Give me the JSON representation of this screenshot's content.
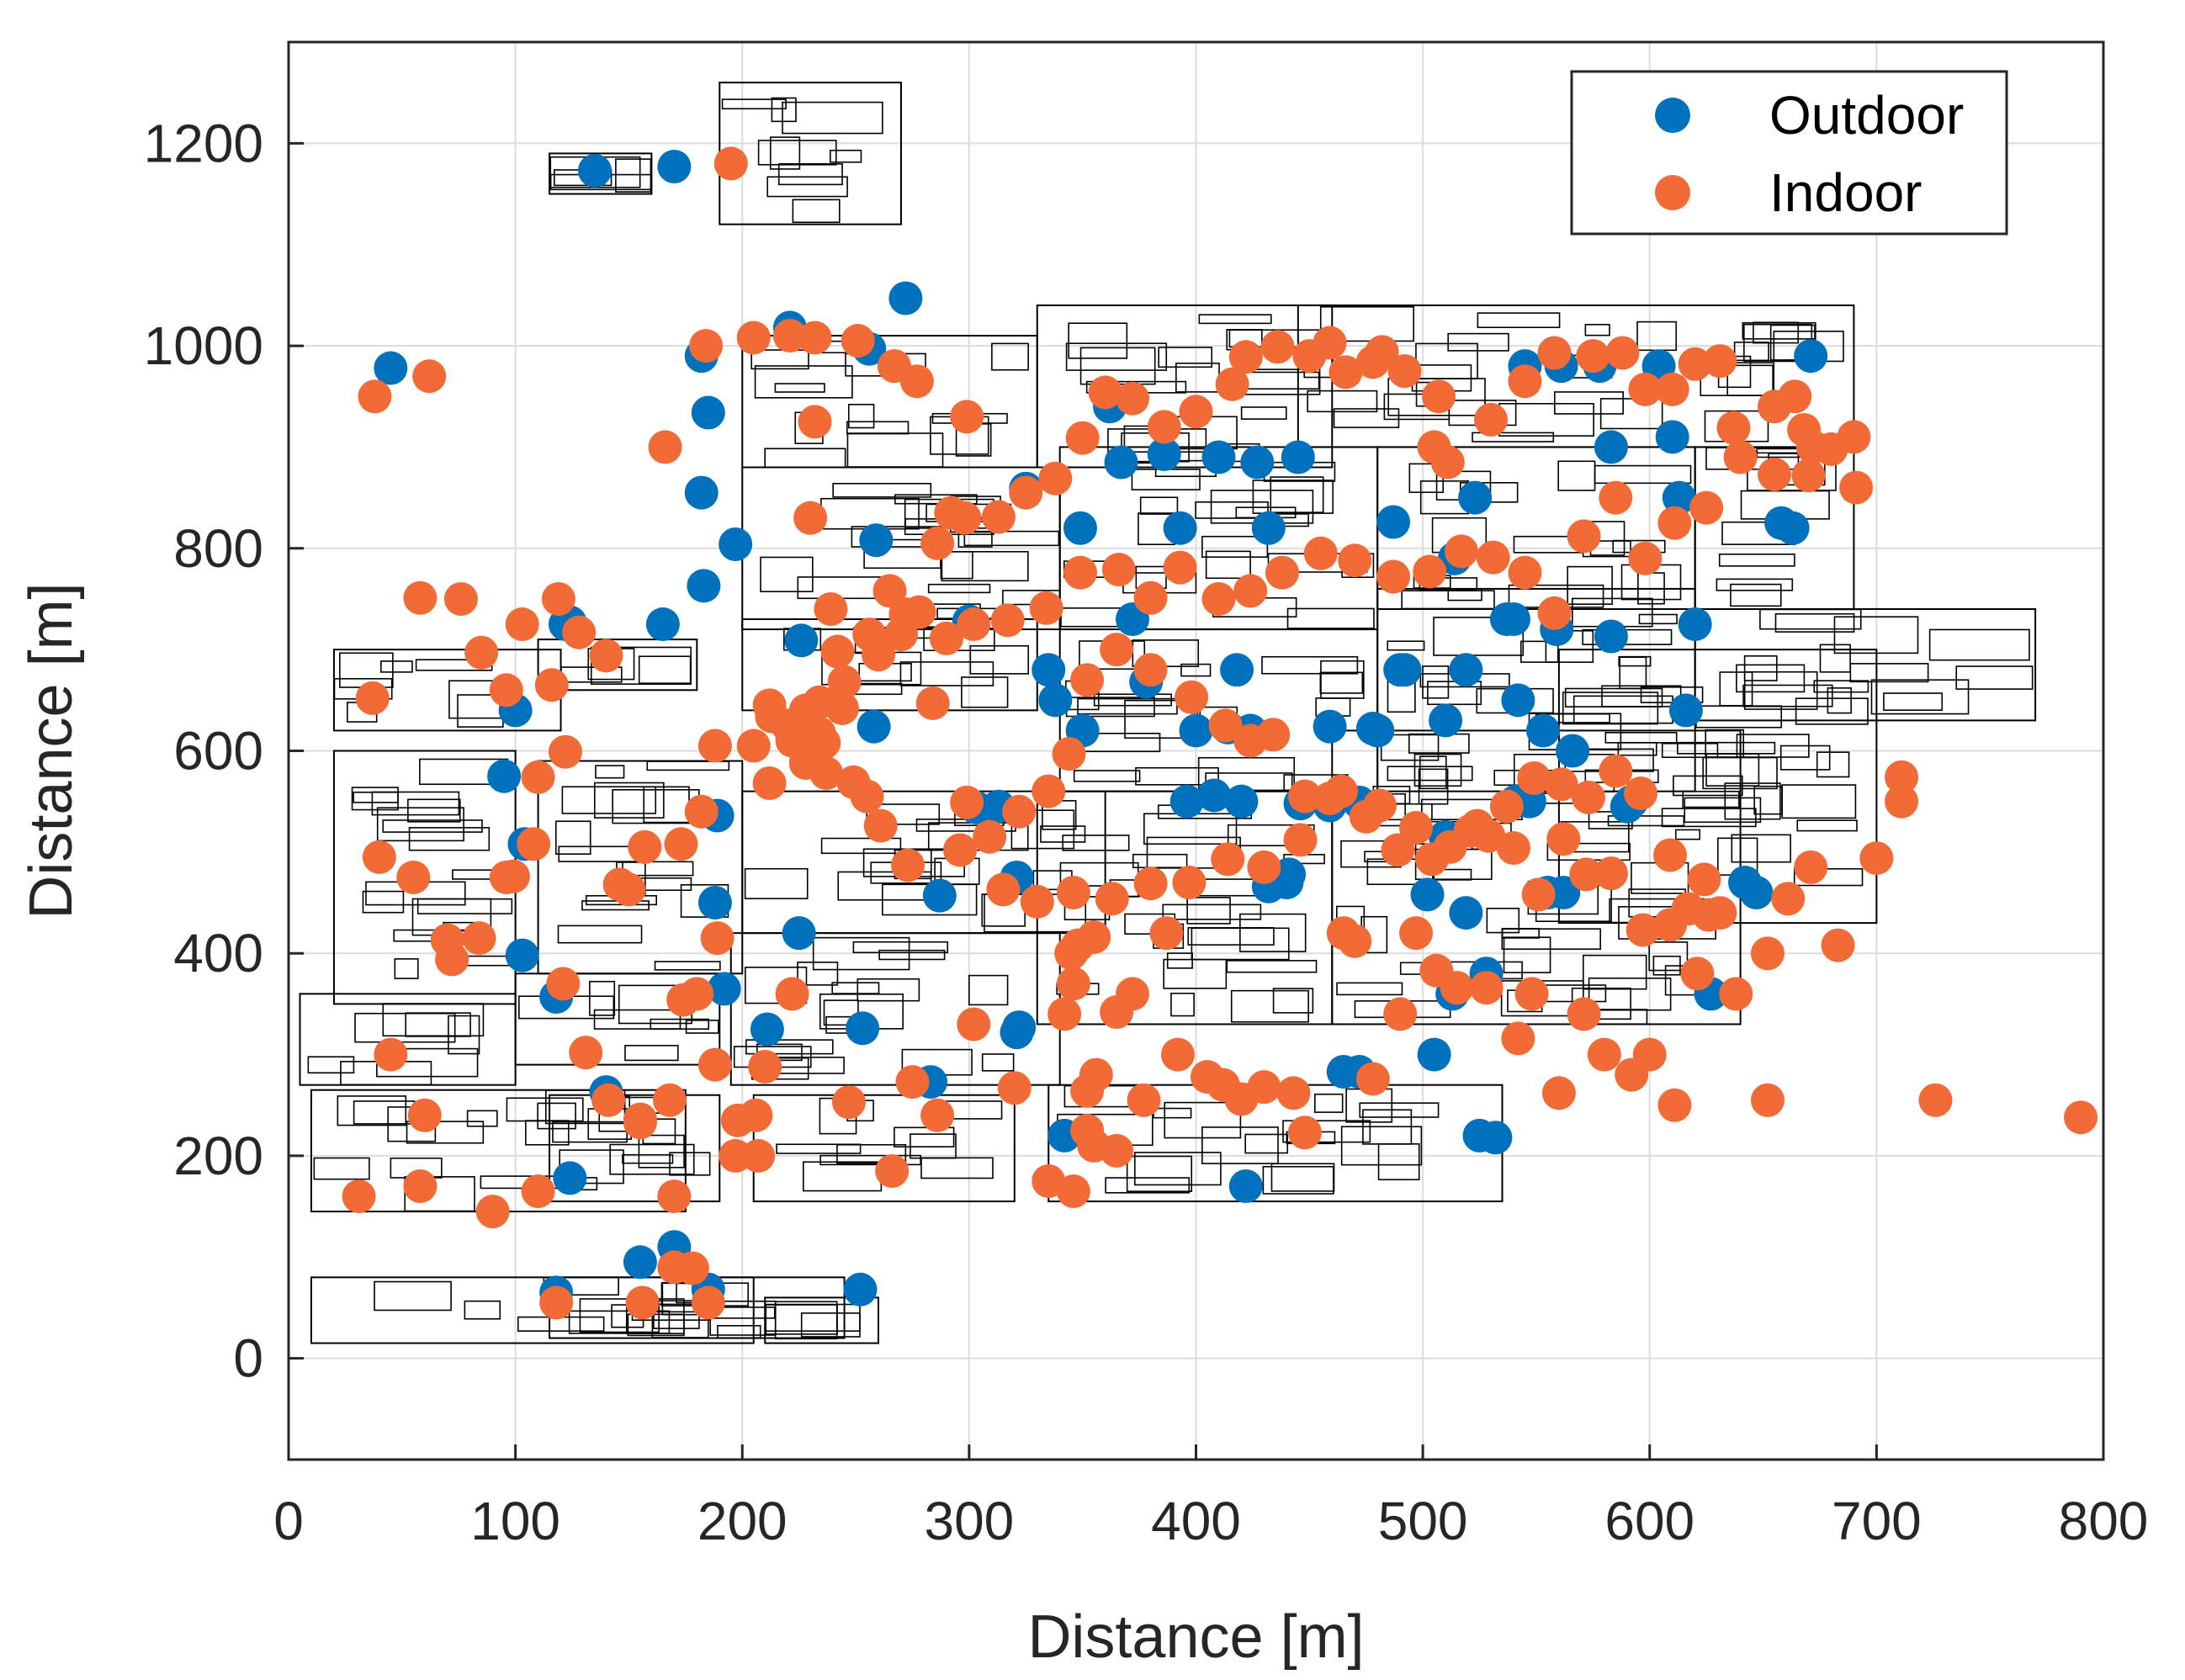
{
  "chart_data": {
    "type": "scatter",
    "title": "",
    "xlabel": "Distance [m]",
    "ylabel": "Distance [m]",
    "xlim": [
      0,
      800
    ],
    "ylim": [
      -100,
      1300
    ],
    "xticks": [
      "0",
      "100",
      "200",
      "300",
      "400",
      "500",
      "600",
      "700",
      "800"
    ],
    "yticks": [
      "0",
      "200",
      "400",
      "600",
      "800",
      "1000",
      "1200"
    ],
    "grid": true,
    "legend": {
      "placement": "top-right",
      "entries": [
        "Outdoor",
        "Indoor"
      ]
    },
    "colors": {
      "Outdoor": "#0072BD",
      "Indoor": "#F26B36",
      "buildings": "#000000",
      "grid": "#dcdcdc",
      "axis": "#262626"
    },
    "series": [
      {
        "name": "Outdoor",
        "x": [
          135,
          170,
          45,
          272,
          221,
          256,
          182,
          185,
          182,
          197,
          259,
          183,
          226,
          189,
          140,
          258,
          313,
          321,
          287,
          303,
          321,
          325,
          335,
          338,
          349,
          362,
          367,
          378,
          393,
          386,
          410,
          427,
          445,
          432,
          418,
          424,
          472,
          480,
          487,
          492,
          505,
          510,
          514,
          519,
          523,
          540,
          541,
          553,
          561,
          578,
          583,
          592,
          604,
          613,
          620,
          642,
          658,
          671,
          562,
          590,
          510,
          528,
          542,
          555,
          440,
          432,
          420,
          414,
          400,
          396,
          441,
          459,
          478,
          465,
          502,
          519,
          525,
          537,
          545,
          559,
          566,
          583,
          610,
          616,
          627,
          647,
          663,
          124,
          100,
          104,
          118,
          124,
          165,
          188,
          192,
          170,
          211,
          225,
          253,
          300,
          283,
          322,
          342,
          350,
          372,
          408,
          422,
          446,
          459,
          472,
          490,
          513,
          532,
          547,
          118,
          155,
          185,
          252,
          122,
          103,
          95
        ],
        "y": [
          1173,
          1177,
          978,
          1047,
          1018,
          997,
          990,
          934,
          855,
          804,
          808,
          763,
          709,
          536,
          263,
          624,
          545,
          475,
          457,
          544,
          322,
          859,
          680,
          650,
          820,
          940,
          885,
          668,
          820,
          893,
          890,
          885,
          890,
          820,
          680,
          620,
          549,
          620,
          826,
          680,
          300,
          630,
          790,
          440,
          850,
          730,
          550,
          620,
          980,
          980,
          713,
          550,
          980,
          850,
          725,
          470,
          825,
          990,
          460,
          545,
          515,
          380,
          650,
          460,
          470,
          466,
          550,
          623,
          620,
          550,
          478,
          624,
          622,
          283,
          458,
          680,
          220,
          730,
          980,
          720,
          600,
          900,
          910,
          640,
          360,
          460,
          820,
          727,
          640,
          508,
          357,
          178,
          725,
          450,
          365,
          110,
          325,
          420,
          326,
          728,
          273,
          327,
          220,
          620,
          730,
          556,
          170,
          548,
          546,
          283,
          680,
          360,
          218,
          550,
          65,
          95,
          68,
          68,
          725,
          398,
          575
        ]
      },
      {
        "name": "Indoor",
        "x": [
          195,
          38,
          62,
          232,
          230,
          239,
          267,
          277,
          299,
          292,
          242,
          270,
          228,
          260,
          234,
          220,
          228,
          244,
          212,
          213,
          237,
          255,
          212,
          205,
          188,
          182,
          173,
          157,
          150,
          146,
          174,
          189,
          210,
          206,
          197,
          170,
          168,
          178,
          185,
          170,
          156,
          118,
          110,
          90,
          58,
          31,
          45,
          70,
          72,
          84,
          96,
          99,
          108,
          110,
          122,
          116,
          128,
          140,
          96,
          85,
          76,
          58,
          55,
          40,
          37,
          103,
          119,
          121,
          131,
          155,
          180,
          188,
          198,
          207,
          222,
          247,
          266,
          275,
          286,
          302,
          320,
          346,
          345,
          355,
          365,
          387,
          372,
          356,
          335,
          352,
          352,
          346,
          348,
          342,
          355,
          365,
          377,
          392,
          405,
          420,
          412,
          430,
          443,
          448,
          465,
          470,
          478,
          490,
          497,
          506,
          515,
          528,
          542,
          548,
          560,
          571,
          580,
          592,
          600,
          611,
          621,
          631,
          638,
          652,
          661,
          671,
          683,
          700,
          711,
          711,
          691,
          670,
          672,
          655,
          637,
          631,
          620,
          610,
          598,
          588,
          575,
          558,
          545,
          530,
          511,
          505,
          507,
          492,
          478,
          482,
          466,
          459,
          450,
          436,
          422,
          416,
          400,
          386,
          372,
          360,
          350,
          338,
          325,
          313,
          298,
          286,
          272,
          265,
          256,
          245,
          234,
          222,
          236,
          249,
          261,
          273,
          296,
          309,
          322,
          335,
          344,
          352,
          365,
          380,
          398,
          413,
          424,
          434,
          448,
          464,
          481,
          497,
          512,
          524,
          537,
          549,
          561,
          573,
          585,
          596,
          609,
          624,
          626,
          617,
          609,
          597,
          583,
          572,
          562,
          551,
          540,
          529,
          521,
          504,
          489,
          475,
          459,
          446,
          430,
          414,
          397,
          380,
          363,
          346,
          330,
          315,
          299,
          284,
          278,
          290,
          302,
          317,
          334,
          349,
          366,
          380,
          393,
          410,
          424,
          438,
          455,
          470,
          487,
          503,
          517,
          531,
          545,
          558,
          571,
          585,
          598,
          611,
          625,
          640,
          655,
          668,
          680,
          690,
          664,
          652,
          726,
          790,
          60,
          141,
          155,
          166,
          184,
          205,
          221,
          232,
          251
        ],
        "y": [
          1180,
          950,
          970,
          1008,
          830,
          740,
          980,
          965,
          930,
          835,
          698,
          715,
          640,
          695,
          617,
          625,
          588,
          642,
          568,
          634,
          578,
          555,
          645,
          605,
          605,
          540,
          508,
          505,
          463,
          468,
          354,
          415,
          288,
          240,
          200,
          160,
          255,
          89,
          55,
          90,
          55,
          55,
          165,
          145,
          170,
          160,
          300,
          413,
          394,
          415,
          475,
          476,
          508,
          574,
          599,
          665,
          717,
          694,
          660,
          697,
          750,
          751,
          475,
          495,
          652,
          725,
          750,
          370,
          302,
          233,
          360,
          290,
          235,
          200,
          360,
          253,
          185,
          273,
          240,
          330,
          267,
          370,
          400,
          416,
          342,
          420,
          360,
          280,
          175,
          225,
          264,
          165,
          408,
          340,
          210,
          205,
          255,
          300,
          278,
          256,
          270,
          268,
          262,
          223,
          420,
          412,
          276,
          340,
          420,
          383,
          366,
          366,
          316,
          360,
          262,
          340,
          300,
          280,
          300,
          250,
          380,
          440,
          360,
          400,
          454,
          485,
          408,
          494,
          550,
          574,
          860,
          872,
          900,
          940,
          919,
          985,
          982,
          957,
          957,
          993,
          990,
          993,
          965,
          927,
          885,
          900,
          950,
          975,
          984,
          994,
          974,
          1003,
          990,
          999,
          989,
          962,
          935,
          920,
          948,
          954,
          909,
          869,
          855,
          831,
          830,
          805,
          735,
          758,
          715,
          668,
          648,
          610,
          608,
          569,
          526,
          487,
          502,
          515,
          540,
          560,
          597,
          670,
          700,
          680,
          653,
          625,
          610,
          616,
          555,
          560,
          546,
          524,
          505,
          526,
          545,
          573,
          567,
          554,
          580,
          558,
          497,
          473,
          438,
          444,
          428,
          423,
          479,
          478,
          513,
          458,
          504,
          516,
          521,
          493,
          502,
          535,
          553,
          512,
          485,
          493,
          470,
          469,
          454,
          460,
          451,
          463,
          549,
          647,
          737,
          711,
          725,
          729,
          741,
          776,
          779,
          751,
          781,
          750,
          758,
          776,
          795,
          788,
          772,
          777,
          797,
          791,
          776,
          736,
          812,
          850,
          790,
          825,
          840,
          890,
          873,
          917,
          898,
          910,
          950,
          255,
          255,
          238,
          240,
          255,
          236,
          900,
          1000,
          1008,
          1010,
          925,
          1005
        ]
      }
    ]
  }
}
